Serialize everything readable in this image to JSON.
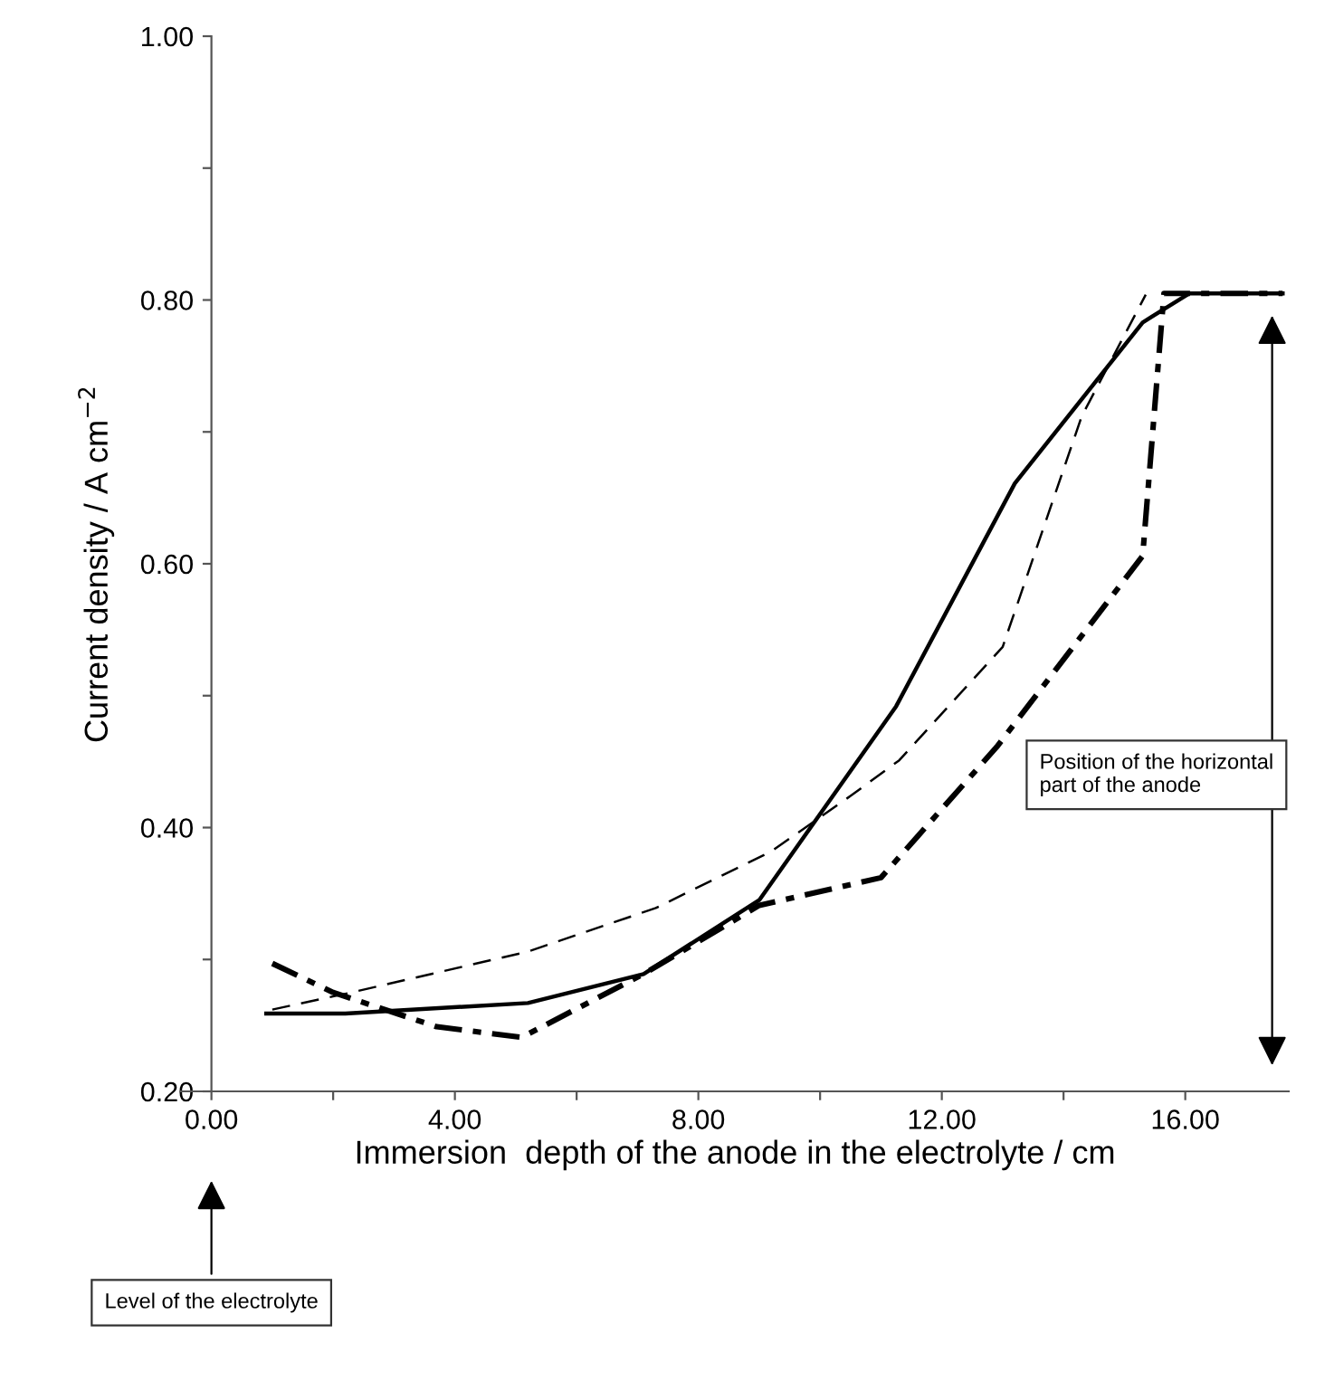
{
  "chart_data": {
    "type": "line",
    "xlabel": "Immersion  depth of the anode in the electrolyte / cm",
    "ylabel": "Current density / A cm$^{−2}$",
    "xlim": [
      -0.5,
      17.7
    ],
    "ylim": [
      0.2,
      1.0
    ],
    "xticks": [
      {
        "value": 0,
        "label": "0.00"
      },
      {
        "value": 2,
        "label": null
      },
      {
        "value": 4,
        "label": "4.00"
      },
      {
        "value": 6,
        "label": null
      },
      {
        "value": 8,
        "label": "8.00"
      },
      {
        "value": 10,
        "label": null
      },
      {
        "value": 12,
        "label": "12.00"
      },
      {
        "value": 14,
        "label": null
      },
      {
        "value": 16,
        "label": "16.00"
      }
    ],
    "yticks": [
      {
        "value": 0.2,
        "label": "0.20"
      },
      {
        "value": 0.3,
        "label": null
      },
      {
        "value": 0.4,
        "label": "0.40"
      },
      {
        "value": 0.5,
        "label": null
      },
      {
        "value": 0.6,
        "label": "0.60"
      },
      {
        "value": 0.7,
        "label": null
      },
      {
        "value": 0.8,
        "label": "0.80"
      },
      {
        "value": 0.9,
        "label": null
      },
      {
        "value": 1.0,
        "label": "1.00"
      }
    ],
    "grid": false,
    "legend": false,
    "marker": "none",
    "series": [
      {
        "color": "#000000",
        "line_style": "solid",
        "x": [
          0.9,
          2.2,
          5.2,
          7.1,
          9.0,
          11.25,
          13.2,
          15.3,
          15.65,
          16.07,
          17.6
        ],
        "values": [
          0.259,
          0.259,
          0.267,
          0.289,
          0.345,
          0.492,
          0.661,
          0.783,
          0.793,
          0.805,
          0.805
        ]
      },
      {
        "color": "#000000",
        "line_style": "dashed",
        "x": [
          1.0,
          2.0,
          3.7,
          5.1,
          7.1,
          9.0,
          11.0,
          12.9,
          15.3,
          15.65,
          17.6
        ],
        "values": [
          0.297,
          0.275,
          0.249,
          0.241,
          0.289,
          0.341,
          0.362,
          0.461,
          0.606,
          0.805,
          0.805
        ]
      },
      {
        "color": "#000000",
        "line_style": "dashed",
        "x": [
          1.0,
          2.3,
          5.2,
          7.3,
          9.2,
          10.5,
          11.3,
          13.0,
          14.3,
          15.35
        ],
        "values": [
          0.262,
          0.275,
          0.306,
          0.339,
          0.382,
          0.424,
          0.451,
          0.537,
          0.712,
          0.804
        ]
      }
    ],
    "annotations": [
      "Position of the horizontal\npart of the anode",
      "Level of the electrolyte"
    ]
  }
}
